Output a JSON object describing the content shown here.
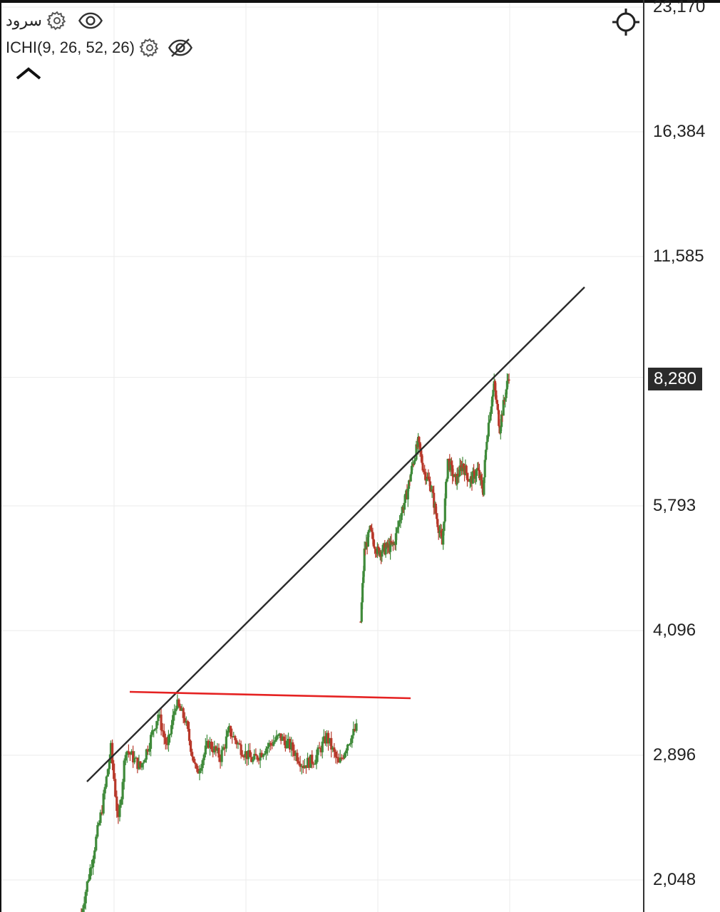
{
  "legend": {
    "symbol_name": "سرود",
    "indicator": "ICHI(9, 26, 52, 26)",
    "icons": [
      "gear-icon",
      "eye-icon",
      "gear-icon",
      "eye-off-icon",
      "chevron-up-icon",
      "crosshair-icon"
    ]
  },
  "chart_data": {
    "type": "candlestick",
    "y_scale": "log",
    "ylim": [
      1850,
      24000
    ],
    "y_ticks": [
      "23,170",
      "16,384",
      "11,585",
      "8,280",
      "5,793",
      "4,096",
      "2,896",
      "2,048"
    ],
    "last_price_label": "8,280",
    "grid": true,
    "colors": {
      "up": "#3f8a3a",
      "down": "#b8392b",
      "trendline": "#2a2a2a",
      "resistance": "#e52222"
    },
    "candles_segment_1": {
      "start": 1870,
      "end": 3120,
      "path": [
        [
          0,
          1870
        ],
        [
          8,
          2200
        ],
        [
          14,
          2500
        ],
        [
          20,
          2950
        ],
        [
          25,
          2400
        ],
        [
          30,
          2950
        ],
        [
          40,
          2800
        ],
        [
          46,
          3000
        ],
        [
          52,
          3250
        ],
        [
          58,
          2950
        ],
        [
          64,
          3350
        ],
        [
          70,
          3200
        ],
        [
          78,
          2750
        ],
        [
          86,
          3000
        ],
        [
          94,
          2880
        ],
        [
          100,
          3100
        ],
        [
          108,
          2950
        ],
        [
          116,
          2850
        ],
        [
          124,
          2950
        ],
        [
          134,
          3050
        ],
        [
          142,
          2960
        ],
        [
          150,
          2820
        ],
        [
          158,
          2870
        ],
        [
          166,
          3050
        ],
        [
          174,
          2820
        ],
        [
          180,
          3000
        ],
        [
          186,
          3120
        ]
      ]
    },
    "candles_segment_2": {
      "start": 4200,
      "end": 8350,
      "path": [
        [
          0,
          4200
        ],
        [
          4,
          5100
        ],
        [
          10,
          5400
        ],
        [
          18,
          5100
        ],
        [
          28,
          5150
        ],
        [
          36,
          5200
        ],
        [
          42,
          5600
        ],
        [
          50,
          6000
        ],
        [
          56,
          6500
        ],
        [
          62,
          6900
        ],
        [
          68,
          6400
        ],
        [
          76,
          6100
        ],
        [
          82,
          5600
        ],
        [
          88,
          5200
        ],
        [
          94,
          6600
        ],
        [
          102,
          6200
        ],
        [
          110,
          6500
        ],
        [
          118,
          6200
        ],
        [
          126,
          6400
        ],
        [
          132,
          6050
        ],
        [
          136,
          7000
        ],
        [
          140,
          7600
        ],
        [
          144,
          8100
        ],
        [
          150,
          7200
        ],
        [
          156,
          7900
        ],
        [
          160,
          8350
        ]
      ]
    }
  }
}
